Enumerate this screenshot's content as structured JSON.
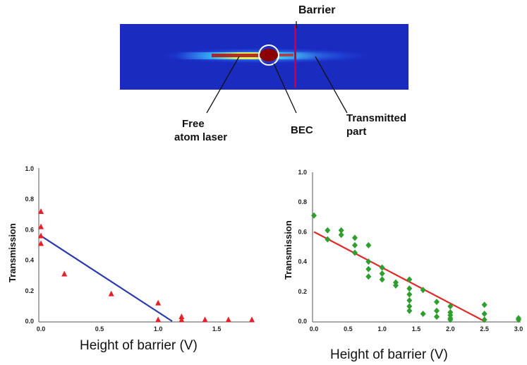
{
  "image": {
    "annotations": {
      "barrier": "Barrier",
      "free_line1": "Free",
      "free_line2": "atom laser",
      "bec": "BEC",
      "trans_line1": "Transmitted",
      "trans_line2": "part"
    },
    "colors": {
      "background": "#1a2bbf",
      "core": "#8b0000",
      "barrier": "#cc0033"
    }
  },
  "chart_data": [
    {
      "type": "scatter",
      "title": "",
      "xlabel": "Height of barrier (V)",
      "ylabel": "Transmission",
      "xlim": [
        0,
        1.8
      ],
      "ylim": [
        0,
        1.0
      ],
      "xticks": [
        "0.0",
        "0.5",
        "1.0",
        "1.5"
      ],
      "xtick_values": [
        0,
        0.5,
        1.0,
        1.5
      ],
      "yticks": [
        "0.0",
        "0.2",
        "0.4",
        "0.6",
        "0.8",
        "1.0"
      ],
      "ytick_values": [
        0,
        0.2,
        0.4,
        0.6,
        0.8,
        1.0
      ],
      "marker": "triangle",
      "marker_color": "#e8202a",
      "fit_color": "#2b3aae",
      "points": [
        [
          0.0,
          0.72
        ],
        [
          0.0,
          0.62
        ],
        [
          0.0,
          0.56
        ],
        [
          0.0,
          0.51
        ],
        [
          0.2,
          0.31
        ],
        [
          0.6,
          0.18
        ],
        [
          1.0,
          0.12
        ],
        [
          1.0,
          0.01
        ],
        [
          1.2,
          0.03
        ],
        [
          1.2,
          0.01
        ],
        [
          1.4,
          0.01
        ],
        [
          1.6,
          0.01
        ],
        [
          1.8,
          0.01
        ]
      ],
      "fit_line": [
        [
          0.0,
          0.56
        ],
        [
          1.12,
          0.0
        ]
      ]
    },
    {
      "type": "scatter",
      "title": "",
      "xlabel": "Height of barrier (V)",
      "ylabel": "Transmission",
      "xlim": [
        0,
        3.0
      ],
      "ylim": [
        0,
        1.0
      ],
      "xticks": [
        "0.0",
        "0.5",
        "1.0",
        "1.5",
        "2.0",
        "2.5",
        "3.0"
      ],
      "xtick_values": [
        0,
        0.5,
        1.0,
        1.5,
        2.0,
        2.5,
        3.0
      ],
      "yticks": [
        "0.0",
        "0.2",
        "0.4",
        "0.6",
        "0.8",
        "1.0"
      ],
      "ytick_values": [
        0,
        0.2,
        0.4,
        0.6,
        0.8,
        1.0
      ],
      "marker": "diamond",
      "marker_color": "#2e9e2e",
      "fit_color": "#e02a2a",
      "points": [
        [
          0.0,
          0.71
        ],
        [
          0.2,
          0.61
        ],
        [
          0.2,
          0.55
        ],
        [
          0.4,
          0.61
        ],
        [
          0.4,
          0.58
        ],
        [
          0.6,
          0.56
        ],
        [
          0.6,
          0.51
        ],
        [
          0.6,
          0.46
        ],
        [
          0.8,
          0.51
        ],
        [
          0.8,
          0.4
        ],
        [
          0.8,
          0.35
        ],
        [
          0.8,
          0.3
        ],
        [
          1.0,
          0.36
        ],
        [
          1.0,
          0.32
        ],
        [
          1.0,
          0.28
        ],
        [
          1.2,
          0.26
        ],
        [
          1.2,
          0.24
        ],
        [
          1.4,
          0.28
        ],
        [
          1.4,
          0.22
        ],
        [
          1.4,
          0.18
        ],
        [
          1.4,
          0.14
        ],
        [
          1.4,
          0.1
        ],
        [
          1.4,
          0.07
        ],
        [
          1.6,
          0.21
        ],
        [
          1.6,
          0.05
        ],
        [
          1.8,
          0.13
        ],
        [
          1.8,
          0.07
        ],
        [
          1.8,
          0.03
        ],
        [
          2.0,
          0.1
        ],
        [
          2.0,
          0.06
        ],
        [
          2.0,
          0.04
        ],
        [
          2.0,
          0.02
        ],
        [
          2.0,
          0.01
        ],
        [
          2.5,
          0.11
        ],
        [
          2.5,
          0.05
        ],
        [
          2.5,
          0.01
        ],
        [
          3.0,
          0.02
        ],
        [
          3.0,
          0.01
        ]
      ],
      "fit_line": [
        [
          0.0,
          0.6
        ],
        [
          2.5,
          0.0
        ]
      ]
    }
  ]
}
